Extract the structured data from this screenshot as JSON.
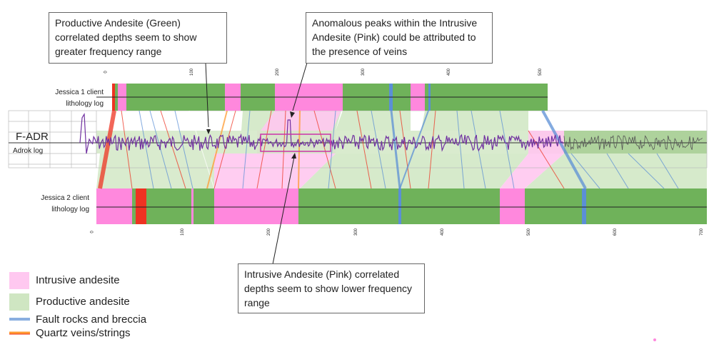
{
  "callouts": {
    "productive": "Productive Andesite (Green) correlated depths seem to show greater frequency range",
    "anomalous": "Anomalous peaks within the Intrusive Andesite (Pink) could be attributed to the presence of veins",
    "intrusive": "Intrusive Andesite (Pink) correlated depths seem to show lower frequency range"
  },
  "tracks": {
    "jessica1_line1": "Jessica 1 client",
    "jessica1_line2": "lithology log",
    "fadr_title": "F-ADR",
    "fadr_sub": "Adrok log",
    "jessica2_line1": "Jessica 2 client",
    "jessica2_line2": "lithology log"
  },
  "scales": {
    "top_ticks": [
      "0",
      "100",
      "200",
      "300",
      "400",
      "500"
    ],
    "bottom_ticks": [
      "0",
      "100",
      "200",
      "300",
      "400",
      "500",
      "600",
      "700"
    ]
  },
  "legend": {
    "intrusive": "Intrusive andesite",
    "productive": "Productive andesite",
    "fault": "Fault rocks and breccia",
    "quartz": "Quartz veins/strings"
  },
  "colors": {
    "pink": "#ff88dd",
    "light_pink": "#ffc8f0",
    "green": "#6fb25a",
    "light_green": "#cfe6c2",
    "blue": "#5b8fd6",
    "red": "#ee3322",
    "orange": "#ff9a30",
    "purple": "#7030a0"
  }
}
